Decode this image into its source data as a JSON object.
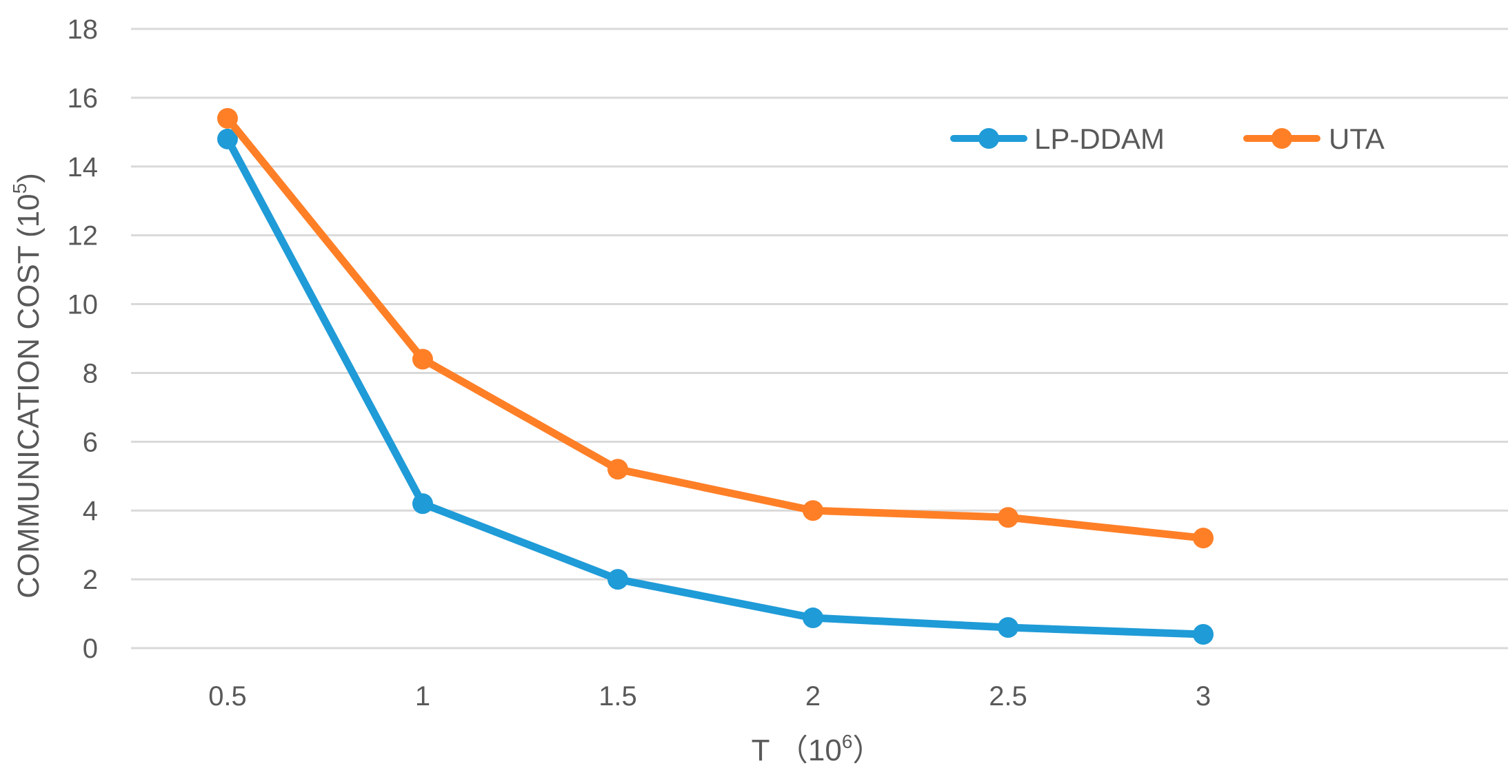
{
  "chart_data": {
    "type": "line",
    "title": "",
    "x": [
      "0.5",
      "1",
      "1.5",
      "2",
      "2.5",
      "3"
    ],
    "series": [
      {
        "name": "LP-DDAM",
        "color": "#1f9bd7",
        "values": [
          14.8,
          4.2,
          2.0,
          0.88,
          0.6,
          0.4
        ]
      },
      {
        "name": "UTA",
        "color": "#ff7f27",
        "values": [
          15.4,
          8.4,
          5.2,
          4.0,
          3.8,
          3.2
        ]
      }
    ],
    "ylim": [
      0,
      18
    ],
    "yticks": [
      0,
      2,
      4,
      6,
      8,
      10,
      12,
      14,
      16,
      18
    ],
    "xlabel": {
      "text": "T （",
      "base": "10",
      "exp": "6",
      "close": "）"
    },
    "ylabel": {
      "text": "COMMUNICATION COST (",
      "base": "10",
      "exp": "5",
      "close": ")"
    },
    "grid": true,
    "legend_position": "top-right"
  }
}
